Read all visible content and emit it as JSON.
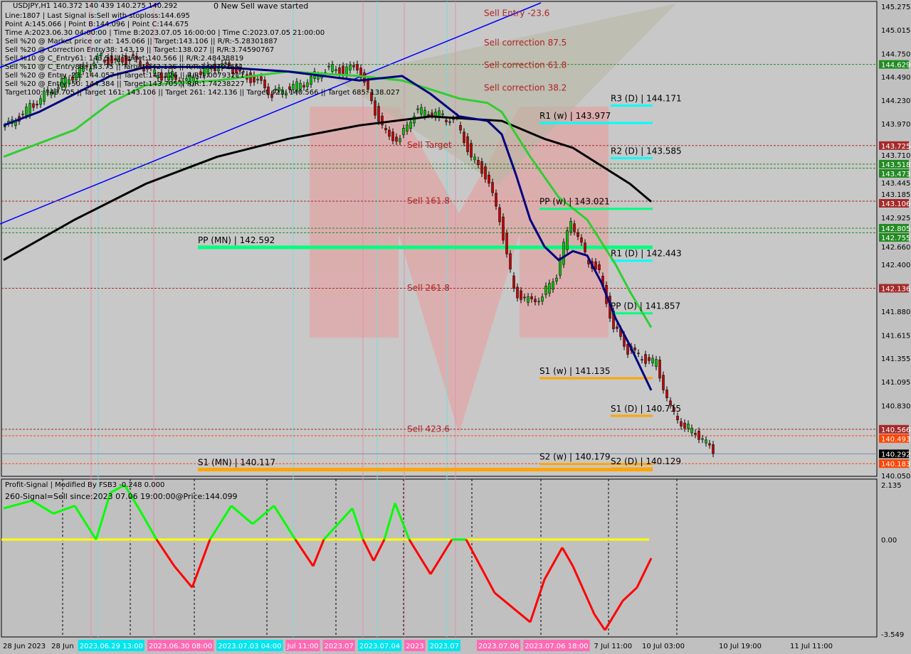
{
  "header": {
    "symbol_line": "USDJPY,H1  140.372 140 439 140.275 140.292",
    "lines": [
      "Line:1807 | Last Signal is:Sell with stoploss:144.695",
      "Point A:145.066 | Point B:144.096 | Point C:144.675",
      "Time A:2023.06.30 04:00:00 | Time B:2023.07.05 16:00:00 | Time C:2023.07.05 21:00:00",
      "Sell %20 @ Market price or at: 145.066 || Target:143.106 || R/R:-5.28301887",
      "Sell %20 @ Correction Entry38: 143.19 || Target:138.027 || R/R:3.74590767",
      "Sell %10 @ C_Entry61: 143.51 || Target:140.566 || R/R:2.48438819",
      "Sell %10 @ C_Entry88: 143.75 || Target:142.136 || R/R:1.00793651",
      "Sell %20 @ Entry -23: 144.057 || Target:143.126 || R/R:1.00793211",
      "Sell %20 @ Entry -50: 144.384 || Target:143.705 || R/R:1.74238227",
      "Target100: 143.705 || Target 161: 143.106 || Target 261: 142.136 || Target 423: 140.566 || Target 685: 138.027"
    ],
    "wave_note": "0 New Sell wave started"
  },
  "oscillator": {
    "title": "Profit-Signal | Modified By FSB3 -0.248 0.000",
    "signal": "260-Signal=Sell since:2023 07.06 19:00:00@Price:144.099"
  },
  "colors": {
    "up": "#00ff00",
    "down": "#ff0000",
    "ma_fast": "#000080",
    "ma_mid": "#32cd32",
    "ma_slow": "#000000",
    "pivot_pp": "#00ff7f",
    "pivot_r": "#00ffff",
    "pivot_s": "#ffa500",
    "channel": "#0000ff"
  },
  "chart_data": [
    {
      "type": "line",
      "title": "USDJPY,H1",
      "ylim": [
        140.05,
        145.275
      ],
      "y_ticks": [
        "145.275",
        "145.015",
        "144.750",
        "144.490",
        "144.230",
        "143.970",
        "143.710",
        "143.445",
        "143.185",
        "142.925",
        "142.660",
        "142.400",
        "141.880",
        "141.615",
        "141.355",
        "141.095",
        "140.830",
        "140.050"
      ],
      "x_ticks": [
        "28 Jun 2023",
        "28 Jun",
        "2023.06.29 13:00",
        "2023.06.30 08:00",
        "2023.07.03 04:00",
        "Jul 11:00",
        "2023.07",
        "2023.07.04",
        "2023",
        "2023.07",
        "2023.07.06",
        "2023.07.06 18:00",
        "7 Jul 11:00",
        "10 Jul 03:00",
        "10 Jul 19:00",
        "11 Jul 11:00"
      ],
      "price_tags": [
        {
          "v": "144.629",
          "c": "#228b22"
        },
        {
          "v": "143.725",
          "c": "#a52a2a"
        },
        {
          "v": "143.518",
          "c": "#228b22"
        },
        {
          "v": "143.473",
          "c": "#228b22"
        },
        {
          "v": "143.106",
          "c": "#a52a2a"
        },
        {
          "v": "142.805",
          "c": "#228b22"
        },
        {
          "v": "142.755",
          "c": "#228b22"
        },
        {
          "v": "142.136",
          "c": "#a52a2a"
        },
        {
          "v": "140.566",
          "c": "#a52a2a"
        },
        {
          "v": "140.493",
          "c": "#ff4500"
        },
        {
          "v": "140.292",
          "c": "#000000"
        },
        {
          "v": "140.183",
          "c": "#ff4500"
        }
      ],
      "price_step_bars": 20,
      "close": [
        143.9,
        144.0,
        144.15,
        144.3,
        144.4,
        144.5,
        144.6,
        144.7,
        144.65,
        144.7,
        144.6,
        144.5,
        144.5,
        144.45,
        144.55,
        144.6,
        144.6,
        144.5,
        144.45,
        144.3,
        144.35,
        144.4,
        144.5,
        144.6,
        144.55,
        144.6,
        144.2,
        143.85,
        143.8,
        144.1,
        144.1,
        144.05,
        144.0,
        143.6,
        143.4,
        142.9,
        142.1,
        142.0,
        142.05,
        142.3,
        142.9,
        142.5,
        142.3,
        141.7,
        141.45,
        141.35,
        141.3,
        140.8,
        140.6,
        140.5,
        140.3
      ],
      "ma_fast": [
        [
          0,
          143.95
        ],
        [
          10,
          144.1
        ],
        [
          20,
          144.3
        ],
        [
          30,
          144.5
        ],
        [
          40,
          144.6
        ],
        [
          60,
          144.6
        ],
        [
          80,
          144.55
        ],
        [
          100,
          144.45
        ],
        [
          112,
          144.5
        ],
        [
          120,
          144.3
        ],
        [
          128,
          144.05
        ],
        [
          136,
          144.0
        ],
        [
          140,
          143.85
        ],
        [
          144,
          143.4
        ],
        [
          148,
          142.9
        ],
        [
          152,
          142.6
        ],
        [
          156,
          142.45
        ],
        [
          160,
          142.55
        ],
        [
          164,
          142.5
        ],
        [
          168,
          142.2
        ],
        [
          172,
          141.8
        ],
        [
          176,
          141.5
        ],
        [
          182,
          141.0
        ]
      ],
      "ma_mid": [
        [
          0,
          143.6
        ],
        [
          20,
          143.9
        ],
        [
          30,
          144.2
        ],
        [
          40,
          144.4
        ],
        [
          60,
          144.45
        ],
        [
          80,
          144.55
        ],
        [
          100,
          144.5
        ],
        [
          112,
          144.45
        ],
        [
          120,
          144.35
        ],
        [
          128,
          144.25
        ],
        [
          136,
          144.2
        ],
        [
          140,
          144.1
        ],
        [
          148,
          143.6
        ],
        [
          156,
          143.15
        ],
        [
          164,
          142.9
        ],
        [
          172,
          142.4
        ],
        [
          176,
          142.1
        ],
        [
          182,
          141.7
        ]
      ],
      "ma_slow": [
        [
          0,
          142.45
        ],
        [
          20,
          142.9
        ],
        [
          40,
          143.3
        ],
        [
          60,
          143.6
        ],
        [
          80,
          143.8
        ],
        [
          100,
          143.95
        ],
        [
          120,
          144.05
        ],
        [
          140,
          144.0
        ],
        [
          152,
          143.8
        ],
        [
          160,
          143.7
        ],
        [
          168,
          143.5
        ],
        [
          176,
          143.3
        ],
        [
          182,
          143.1
        ]
      ],
      "pivots": [
        {
          "t": "R3 (D) | 144.171",
          "v": 144.171,
          "k": "r",
          "a": 171,
          "b": 182
        },
        {
          "t": "R1 (w) | 143.977",
          "v": 143.977,
          "k": "r",
          "a": 151,
          "b": 182
        },
        {
          "t": "R2 (D) | 143.585",
          "v": 143.585,
          "k": "r",
          "a": 171,
          "b": 182
        },
        {
          "t": "PP (w) | 143.021",
          "v": 143.021,
          "k": "pp",
          "a": 151,
          "b": 182
        },
        {
          "t": "PP (MN) | 142.592",
          "v": 142.592,
          "k": "pp",
          "a": 55,
          "b": 182
        },
        {
          "t": "R1 (D) | 142.443",
          "v": 142.443,
          "k": "r",
          "a": 171,
          "b": 182
        },
        {
          "t": "PP (D) | 141.857",
          "v": 141.857,
          "k": "pp",
          "a": 171,
          "b": 182
        },
        {
          "t": "S1 (w) | 141.135",
          "v": 141.135,
          "k": "s",
          "a": 151,
          "b": 182
        },
        {
          "t": "S1 (D) | 140.715",
          "v": 140.715,
          "k": "s",
          "a": 171,
          "b": 182
        },
        {
          "t": "S2 (w) | 140.179",
          "v": 140.179,
          "k": "s",
          "a": 151,
          "b": 182
        },
        {
          "t": "S2 (D) | 140.129",
          "v": 140.129,
          "k": "s",
          "a": 171,
          "b": 182
        },
        {
          "t": "S1 (MN) | 140.117",
          "v": 140.117,
          "k": "s",
          "a": 55,
          "b": 182
        }
      ],
      "fib_labels": [
        {
          "t": "Sell Entry -23.6",
          "v": 145.2
        },
        {
          "t": "Sell correction 87.5",
          "v": 144.87
        },
        {
          "t": "Sell correction 61.8",
          "v": 144.62
        },
        {
          "t": "Sell correction 38.2",
          "v": 144.37
        },
        {
          "t": "Sell Target",
          "v": 143.73
        },
        {
          "t": "Sell 161.8",
          "v": 143.11
        },
        {
          "t": "Sell 261.8",
          "v": 142.14
        },
        {
          "t": "Sell 423.6",
          "v": 140.57
        }
      ]
    },
    {
      "type": "line",
      "title": "Profit-Signal",
      "ylim": [
        -3.549,
        2.135
      ],
      "y_ticks": [
        "2.135",
        "0.00",
        "-3.549"
      ],
      "values": [
        [
          0,
          1.2
        ],
        [
          8,
          1.5
        ],
        [
          14,
          1.0
        ],
        [
          20,
          1.3
        ],
        [
          26,
          0
        ],
        [
          30,
          1.8
        ],
        [
          34,
          2.1
        ],
        [
          38,
          1.2
        ],
        [
          43,
          0
        ],
        [
          48,
          -1.0
        ],
        [
          53,
          -1.8
        ],
        [
          58,
          0
        ],
        [
          64,
          1.3
        ],
        [
          70,
          0.6
        ],
        [
          76,
          1.3
        ],
        [
          82,
          0
        ],
        [
          87,
          -1.0
        ],
        [
          90,
          0
        ],
        [
          98,
          1.2
        ],
        [
          101,
          0
        ],
        [
          104,
          -0.8
        ],
        [
          107,
          0
        ],
        [
          110,
          1.4
        ],
        [
          114,
          0
        ],
        [
          120,
          -1.3
        ],
        [
          126,
          0
        ],
        [
          130,
          0
        ],
        [
          138,
          -2.0
        ],
        [
          148,
          -3.1
        ],
        [
          152,
          -1.5
        ],
        [
          157,
          -0.3
        ],
        [
          160,
          -1.0
        ],
        [
          166,
          -2.8
        ],
        [
          169,
          -3.4
        ],
        [
          174,
          -2.3
        ],
        [
          178,
          -1.8
        ],
        [
          182,
          -0.7
        ]
      ]
    }
  ]
}
